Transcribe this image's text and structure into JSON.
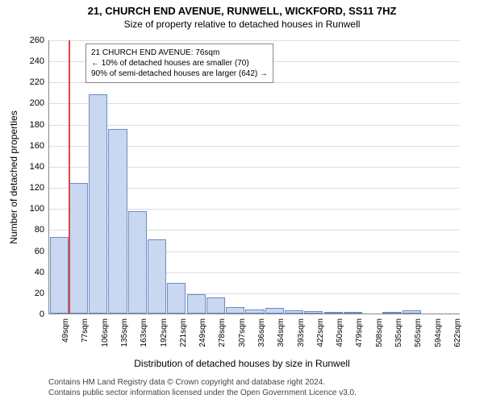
{
  "title_main": "21, CHURCH END AVENUE, RUNWELL, WICKFORD, SS11 7HZ",
  "title_sub": "Size of property relative to detached houses in Runwell",
  "ylabel": "Number of detached properties",
  "xlabel": "Distribution of detached houses by size in Runwell",
  "chart": {
    "type": "histogram",
    "ylim": [
      0,
      260
    ],
    "ytick_step": 20,
    "bar_fill": "#c9d8f0",
    "bar_stroke": "#6a8bc9",
    "grid_color": "#dddddd",
    "background": "#ffffff",
    "ref_line_color": "#d94a4a",
    "ref_line_value": 76,
    "title_fontsize": 13,
    "label_fontsize": 12,
    "tick_fontsize": 11,
    "categories": [
      "49sqm",
      "77sqm",
      "106sqm",
      "135sqm",
      "163sqm",
      "192sqm",
      "221sqm",
      "249sqm",
      "278sqm",
      "307sqm",
      "336sqm",
      "364sqm",
      "393sqm",
      "422sqm",
      "450sqm",
      "479sqm",
      "508sqm",
      "535sqm",
      "565sqm",
      "594sqm",
      "622sqm"
    ],
    "values": [
      73,
      124,
      208,
      175,
      97,
      70,
      29,
      18,
      15,
      6,
      4,
      5,
      3,
      2,
      1,
      1,
      0,
      1,
      3,
      0,
      0
    ]
  },
  "info_box": {
    "line1": "21 CHURCH END AVENUE: 76sqm",
    "line2": "← 10% of detached houses are smaller (70)",
    "line3": "90% of semi-detached houses are larger (642) →"
  },
  "footer": {
    "line1": "Contains HM Land Registry data © Crown copyright and database right 2024.",
    "line2": "Contains public sector information licensed under the Open Government Licence v3.0."
  }
}
